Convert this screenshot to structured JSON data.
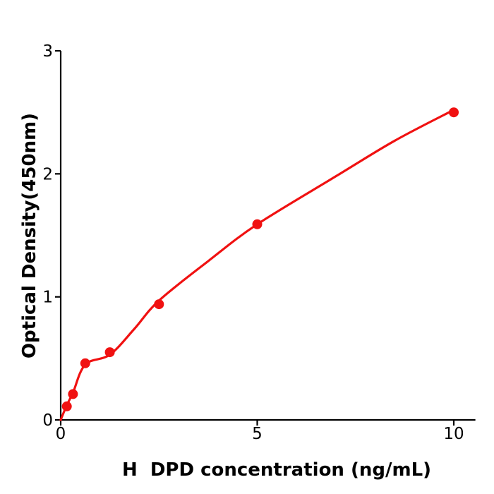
{
  "figure": {
    "background": "#ffffff"
  },
  "chart_data": {
    "type": "scatter",
    "title": "",
    "xlabel": "H  DPD concentration (ng/mL)",
    "ylabel": "Optical Density(450nm)",
    "xlim": [
      0,
      10.55
    ],
    "ylim": [
      0,
      3
    ],
    "x_ticks": [
      0,
      5,
      10
    ],
    "y_ticks": [
      0,
      1,
      2,
      3
    ],
    "grid": false,
    "legend": false,
    "points": {
      "name": "standard-curve-data-points",
      "x": [
        0.156,
        0.312,
        0.625,
        1.25,
        2.5,
        5,
        10
      ],
      "y": [
        0.11,
        0.21,
        0.46,
        0.55,
        0.94,
        1.59,
        2.5
      ]
    },
    "fit_curve": {
      "name": "fitted-standard-curve",
      "x": [
        0,
        0.156,
        0.312,
        0.625,
        1.25,
        1.875,
        2.5,
        3.75,
        5,
        7,
        8.5,
        10
      ],
      "y": [
        0,
        0.12,
        0.22,
        0.45,
        0.53,
        0.74,
        0.97,
        1.29,
        1.59,
        1.98,
        2.27,
        2.52
      ]
    },
    "marker_color": "#f01111",
    "line_color": "#f01111",
    "axis_color": "#000000",
    "text_color": "#000000"
  }
}
